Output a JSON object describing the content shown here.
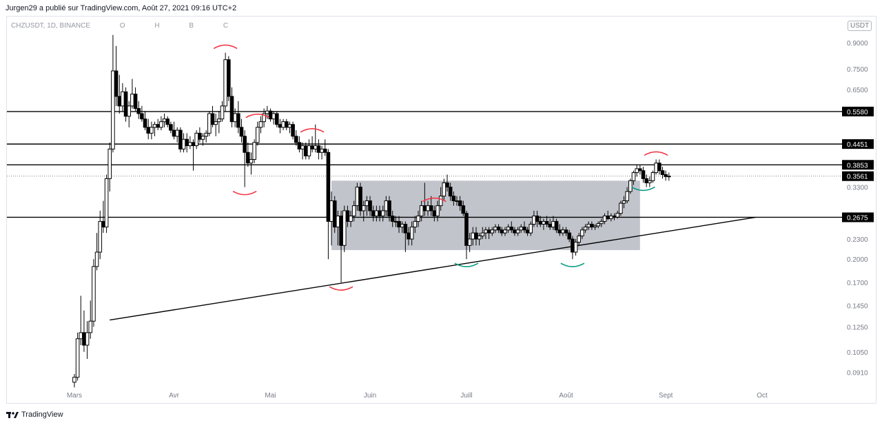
{
  "header": {
    "publish_text": "Jurgen29 a  publié sur TradingView.com, Août 27, 2021 09:16 UTC+2"
  },
  "symbol": {
    "ticker": "CHZUSDT, 1D, BINANCE",
    "o_label": "O",
    "h_label": "H",
    "b_label": "B",
    "c_label": "C"
  },
  "currency_badge": "USDT",
  "footer": {
    "brand": "TradingView"
  },
  "colors": {
    "candle": "#000000",
    "level_line": "#000000",
    "range_box": "#b2b5be",
    "resistance_mark": "#f23645",
    "support_mark": "#089981",
    "current_price_bg": "#000000"
  },
  "chart_data": {
    "type": "candlestick",
    "pair": "CHZUSDT",
    "timeframe": "1D",
    "exchange": "BINANCE",
    "yscale": "log",
    "ylim": [
      0.081,
      1.08
    ],
    "x_tick_labels": [
      "Mars",
      "Avr",
      "Mai",
      "Juin",
      "Juill",
      "Août",
      "Sept",
      "Oct"
    ],
    "y_tick_labels": [
      "0.9000",
      "0.7500",
      "0.6500",
      "0.3300",
      "0.2300",
      "0.2000",
      "0.1700",
      "0.1450",
      "0.1250",
      "0.1050",
      "0.0910"
    ],
    "y_tick_values": [
      0.9,
      0.75,
      0.65,
      0.33,
      0.23,
      0.2,
      0.17,
      0.145,
      0.125,
      0.105,
      0.091
    ],
    "horizontal_levels": [
      {
        "label": "0.5580",
        "value": 0.558
      },
      {
        "label": "0.4451",
        "value": 0.4451
      },
      {
        "label": "0.3853",
        "value": 0.3853
      },
      {
        "label": "0.2675",
        "value": 0.2675
      }
    ],
    "current_price": {
      "label": "0.3561",
      "value": 0.3561
    },
    "range_box": {
      "start": "2021-05-20",
      "end": "2021-08-24",
      "top": 0.345,
      "bottom": 0.213
    },
    "trendline": {
      "start_date": "2021-03-12",
      "start_value": 0.131,
      "end_date": "2021-09-29",
      "end_value": 0.2675
    },
    "candles": [
      [
        "2021-03-01",
        0.085,
        0.09,
        0.082,
        0.088
      ],
      [
        "2021-03-02",
        0.088,
        0.12,
        0.086,
        0.115
      ],
      [
        "2021-03-03",
        0.115,
        0.155,
        0.11,
        0.12
      ],
      [
        "2021-03-04",
        0.12,
        0.14,
        0.105,
        0.11
      ],
      [
        "2021-03-05",
        0.11,
        0.13,
        0.1,
        0.12
      ],
      [
        "2021-03-06",
        0.12,
        0.15,
        0.115,
        0.13
      ],
      [
        "2021-03-07",
        0.13,
        0.2,
        0.125,
        0.19
      ],
      [
        "2021-03-08",
        0.19,
        0.24,
        0.185,
        0.21
      ],
      [
        "2021-03-09",
        0.21,
        0.28,
        0.2,
        0.26
      ],
      [
        "2021-03-10",
        0.26,
        0.3,
        0.24,
        0.25
      ],
      [
        "2021-03-11",
        0.25,
        0.36,
        0.24,
        0.35
      ],
      [
        "2021-03-12",
        0.35,
        0.45,
        0.32,
        0.43
      ],
      [
        "2021-03-13",
        0.43,
        0.95,
        0.42,
        0.74
      ],
      [
        "2021-03-14",
        0.74,
        0.88,
        0.58,
        0.62
      ],
      [
        "2021-03-15",
        0.62,
        0.72,
        0.55,
        0.58
      ],
      [
        "2021-03-16",
        0.58,
        0.68,
        0.56,
        0.64
      ],
      [
        "2021-03-17",
        0.64,
        0.66,
        0.52,
        0.54
      ],
      [
        "2021-03-18",
        0.54,
        0.6,
        0.5,
        0.58
      ],
      [
        "2021-03-19",
        0.58,
        0.7,
        0.57,
        0.63
      ],
      [
        "2021-03-20",
        0.63,
        0.66,
        0.56,
        0.57
      ],
      [
        "2021-03-21",
        0.57,
        0.6,
        0.53,
        0.55
      ],
      [
        "2021-03-22",
        0.55,
        0.58,
        0.52,
        0.53
      ],
      [
        "2021-03-23",
        0.53,
        0.56,
        0.49,
        0.5
      ],
      [
        "2021-03-24",
        0.5,
        0.53,
        0.46,
        0.48
      ],
      [
        "2021-03-25",
        0.48,
        0.52,
        0.46,
        0.5
      ],
      [
        "2021-03-26",
        0.5,
        0.52,
        0.47,
        0.51
      ],
      [
        "2021-03-27",
        0.51,
        0.53,
        0.49,
        0.5
      ],
      [
        "2021-03-28",
        0.5,
        0.54,
        0.49,
        0.52
      ],
      [
        "2021-03-29",
        0.52,
        0.55,
        0.5,
        0.53
      ],
      [
        "2021-03-30",
        0.53,
        0.54,
        0.5,
        0.51
      ],
      [
        "2021-03-31",
        0.51,
        0.52,
        0.48,
        0.49
      ],
      [
        "2021-04-01",
        0.49,
        0.52,
        0.46,
        0.47
      ],
      [
        "2021-04-02",
        0.47,
        0.5,
        0.45,
        0.49
      ],
      [
        "2021-04-03",
        0.49,
        0.5,
        0.42,
        0.43
      ],
      [
        "2021-04-04",
        0.43,
        0.48,
        0.42,
        0.46
      ],
      [
        "2021-04-05",
        0.46,
        0.48,
        0.42,
        0.44
      ],
      [
        "2021-04-06",
        0.44,
        0.47,
        0.43,
        0.45
      ],
      [
        "2021-04-07",
        0.45,
        0.46,
        0.37,
        0.44
      ],
      [
        "2021-04-08",
        0.44,
        0.49,
        0.43,
        0.48
      ],
      [
        "2021-04-09",
        0.48,
        0.5,
        0.45,
        0.46
      ],
      [
        "2021-04-10",
        0.46,
        0.48,
        0.44,
        0.47
      ],
      [
        "2021-04-11",
        0.47,
        0.49,
        0.45,
        0.48
      ],
      [
        "2021-04-12",
        0.48,
        0.56,
        0.47,
        0.55
      ],
      [
        "2021-04-13",
        0.55,
        0.58,
        0.5,
        0.51
      ],
      [
        "2021-04-14",
        0.51,
        0.55,
        0.47,
        0.52
      ],
      [
        "2021-04-15",
        0.52,
        0.56,
        0.48,
        0.53
      ],
      [
        "2021-04-16",
        0.53,
        0.6,
        0.52,
        0.58
      ],
      [
        "2021-04-17",
        0.58,
        0.84,
        0.56,
        0.8
      ],
      [
        "2021-04-18",
        0.8,
        0.82,
        0.6,
        0.62
      ],
      [
        "2021-04-19",
        0.62,
        0.66,
        0.5,
        0.52
      ],
      [
        "2021-04-20",
        0.52,
        0.57,
        0.5,
        0.55
      ],
      [
        "2021-04-21",
        0.55,
        0.6,
        0.48,
        0.5
      ],
      [
        "2021-04-22",
        0.5,
        0.53,
        0.45,
        0.47
      ],
      [
        "2021-04-23",
        0.47,
        0.49,
        0.33,
        0.42
      ],
      [
        "2021-04-24",
        0.42,
        0.45,
        0.38,
        0.39
      ],
      [
        "2021-04-25",
        0.39,
        0.42,
        0.36,
        0.4
      ],
      [
        "2021-04-26",
        0.4,
        0.46,
        0.39,
        0.45
      ],
      [
        "2021-04-27",
        0.45,
        0.52,
        0.44,
        0.5
      ],
      [
        "2021-04-28",
        0.5,
        0.54,
        0.48,
        0.52
      ],
      [
        "2021-04-29",
        0.52,
        0.57,
        0.5,
        0.55
      ],
      [
        "2021-04-30",
        0.55,
        0.58,
        0.53,
        0.56
      ],
      [
        "2021-05-01",
        0.56,
        0.57,
        0.52,
        0.53
      ],
      [
        "2021-05-02",
        0.53,
        0.56,
        0.51,
        0.55
      ],
      [
        "2021-05-03",
        0.55,
        0.56,
        0.5,
        0.51
      ],
      [
        "2021-05-04",
        0.51,
        0.53,
        0.48,
        0.5
      ],
      [
        "2021-05-05",
        0.5,
        0.53,
        0.49,
        0.52
      ],
      [
        "2021-05-06",
        0.52,
        0.53,
        0.49,
        0.5
      ],
      [
        "2021-05-07",
        0.5,
        0.52,
        0.48,
        0.51
      ],
      [
        "2021-05-08",
        0.51,
        0.52,
        0.46,
        0.47
      ],
      [
        "2021-05-09",
        0.47,
        0.49,
        0.44,
        0.45
      ],
      [
        "2021-05-10",
        0.45,
        0.47,
        0.42,
        0.43
      ],
      [
        "2021-05-11",
        0.43,
        0.45,
        0.4,
        0.44
      ],
      [
        "2021-05-12",
        0.44,
        0.45,
        0.4,
        0.41
      ],
      [
        "2021-05-13",
        0.41,
        0.46,
        0.4,
        0.44
      ],
      [
        "2021-05-14",
        0.44,
        0.47,
        0.42,
        0.43
      ],
      [
        "2021-05-15",
        0.43,
        0.51,
        0.42,
        0.44
      ],
      [
        "2021-05-16",
        0.44,
        0.46,
        0.4,
        0.42
      ],
      [
        "2021-05-17",
        0.42,
        0.44,
        0.4,
        0.43
      ],
      [
        "2021-05-18",
        0.43,
        0.46,
        0.41,
        0.42
      ],
      [
        "2021-05-19",
        0.42,
        0.43,
        0.2,
        0.26
      ],
      [
        "2021-05-20",
        0.26,
        0.32,
        0.22,
        0.3
      ],
      [
        "2021-05-21",
        0.3,
        0.31,
        0.24,
        0.25
      ],
      [
        "2021-05-22",
        0.25,
        0.28,
        0.22,
        0.27
      ],
      [
        "2021-05-23",
        0.27,
        0.28,
        0.17,
        0.22
      ],
      [
        "2021-05-24",
        0.22,
        0.29,
        0.21,
        0.28
      ],
      [
        "2021-05-25",
        0.28,
        0.29,
        0.25,
        0.26
      ],
      [
        "2021-05-26",
        0.26,
        0.28,
        0.25,
        0.27
      ],
      [
        "2021-05-27",
        0.27,
        0.3,
        0.26,
        0.29
      ],
      [
        "2021-05-28",
        0.29,
        0.34,
        0.28,
        0.33
      ],
      [
        "2021-05-29",
        0.33,
        0.34,
        0.27,
        0.28
      ],
      [
        "2021-05-30",
        0.28,
        0.3,
        0.26,
        0.29
      ],
      [
        "2021-05-31",
        0.29,
        0.31,
        0.27,
        0.3
      ],
      [
        "2021-06-01",
        0.3,
        0.31,
        0.27,
        0.28
      ],
      [
        "2021-06-02",
        0.28,
        0.29,
        0.26,
        0.27
      ],
      [
        "2021-06-03",
        0.27,
        0.29,
        0.26,
        0.28
      ],
      [
        "2021-06-04",
        0.28,
        0.29,
        0.26,
        0.27
      ],
      [
        "2021-06-05",
        0.27,
        0.29,
        0.26,
        0.28
      ],
      [
        "2021-06-06",
        0.28,
        0.31,
        0.27,
        0.3
      ],
      [
        "2021-06-07",
        0.3,
        0.31,
        0.26,
        0.27
      ],
      [
        "2021-06-08",
        0.27,
        0.28,
        0.25,
        0.26
      ],
      [
        "2021-06-09",
        0.26,
        0.27,
        0.25,
        0.26
      ],
      [
        "2021-06-10",
        0.26,
        0.27,
        0.24,
        0.25
      ],
      [
        "2021-06-11",
        0.25,
        0.26,
        0.24,
        0.255
      ],
      [
        "2021-06-12",
        0.255,
        0.26,
        0.21,
        0.24
      ],
      [
        "2021-06-13",
        0.24,
        0.25,
        0.22,
        0.23
      ],
      [
        "2021-06-14",
        0.23,
        0.26,
        0.22,
        0.25
      ],
      [
        "2021-06-15",
        0.25,
        0.27,
        0.24,
        0.26
      ],
      [
        "2021-06-16",
        0.26,
        0.28,
        0.25,
        0.27
      ],
      [
        "2021-06-17",
        0.27,
        0.3,
        0.26,
        0.29
      ],
      [
        "2021-06-18",
        0.29,
        0.34,
        0.27,
        0.28
      ],
      [
        "2021-06-19",
        0.28,
        0.3,
        0.27,
        0.29
      ],
      [
        "2021-06-20",
        0.29,
        0.31,
        0.27,
        0.28
      ],
      [
        "2021-06-21",
        0.28,
        0.29,
        0.26,
        0.27
      ],
      [
        "2021-06-22",
        0.27,
        0.3,
        0.26,
        0.29
      ],
      [
        "2021-06-23",
        0.29,
        0.33,
        0.28,
        0.31
      ],
      [
        "2021-06-24",
        0.31,
        0.35,
        0.3,
        0.34
      ],
      [
        "2021-06-25",
        0.34,
        0.36,
        0.32,
        0.33
      ],
      [
        "2021-06-26",
        0.33,
        0.34,
        0.3,
        0.31
      ],
      [
        "2021-06-27",
        0.31,
        0.32,
        0.29,
        0.3
      ],
      [
        "2021-06-28",
        0.3,
        0.31,
        0.29,
        0.3
      ],
      [
        "2021-06-29",
        0.3,
        0.31,
        0.28,
        0.29
      ],
      [
        "2021-06-30",
        0.29,
        0.3,
        0.27,
        0.275
      ],
      [
        "2021-07-01",
        0.275,
        0.28,
        0.2,
        0.22
      ],
      [
        "2021-07-02",
        0.22,
        0.24,
        0.21,
        0.23
      ],
      [
        "2021-07-03",
        0.23,
        0.25,
        0.22,
        0.24
      ],
      [
        "2021-07-04",
        0.24,
        0.25,
        0.22,
        0.23
      ],
      [
        "2021-07-05",
        0.23,
        0.24,
        0.22,
        0.235
      ],
      [
        "2021-07-06",
        0.235,
        0.25,
        0.23,
        0.24
      ],
      [
        "2021-07-07",
        0.24,
        0.25,
        0.23,
        0.245
      ],
      [
        "2021-07-08",
        0.245,
        0.25,
        0.23,
        0.24
      ],
      [
        "2021-07-09",
        0.24,
        0.25,
        0.235,
        0.245
      ],
      [
        "2021-07-10",
        0.245,
        0.255,
        0.24,
        0.25
      ],
      [
        "2021-07-11",
        0.25,
        0.255,
        0.24,
        0.245
      ],
      [
        "2021-07-12",
        0.245,
        0.25,
        0.235,
        0.24
      ],
      [
        "2021-07-13",
        0.24,
        0.25,
        0.235,
        0.245
      ],
      [
        "2021-07-14",
        0.245,
        0.255,
        0.24,
        0.25
      ],
      [
        "2021-07-15",
        0.25,
        0.26,
        0.24,
        0.245
      ],
      [
        "2021-07-16",
        0.245,
        0.25,
        0.235,
        0.24
      ],
      [
        "2021-07-17",
        0.24,
        0.25,
        0.235,
        0.245
      ],
      [
        "2021-07-18",
        0.245,
        0.255,
        0.24,
        0.25
      ],
      [
        "2021-07-19",
        0.25,
        0.26,
        0.24,
        0.245
      ],
      [
        "2021-07-20",
        0.245,
        0.25,
        0.235,
        0.24
      ],
      [
        "2021-07-21",
        0.24,
        0.26,
        0.235,
        0.255
      ],
      [
        "2021-07-22",
        0.255,
        0.28,
        0.25,
        0.27
      ],
      [
        "2021-07-23",
        0.27,
        0.28,
        0.25,
        0.26
      ],
      [
        "2021-07-24",
        0.26,
        0.27,
        0.25,
        0.255
      ],
      [
        "2021-07-25",
        0.255,
        0.265,
        0.245,
        0.26
      ],
      [
        "2021-07-26",
        0.26,
        0.27,
        0.25,
        0.255
      ],
      [
        "2021-07-27",
        0.255,
        0.265,
        0.245,
        0.25
      ],
      [
        "2021-07-28",
        0.25,
        0.27,
        0.245,
        0.26
      ],
      [
        "2021-07-29",
        0.26,
        0.265,
        0.24,
        0.245
      ],
      [
        "2021-07-30",
        0.245,
        0.255,
        0.235,
        0.24
      ],
      [
        "2021-07-31",
        0.24,
        0.25,
        0.235,
        0.245
      ],
      [
        "2021-08-01",
        0.245,
        0.25,
        0.235,
        0.24
      ],
      [
        "2021-08-02",
        0.24,
        0.245,
        0.225,
        0.23
      ],
      [
        "2021-08-03",
        0.23,
        0.235,
        0.2,
        0.21
      ],
      [
        "2021-08-04",
        0.21,
        0.23,
        0.205,
        0.225
      ],
      [
        "2021-08-05",
        0.225,
        0.24,
        0.22,
        0.235
      ],
      [
        "2021-08-06",
        0.235,
        0.25,
        0.23,
        0.245
      ],
      [
        "2021-08-07",
        0.245,
        0.255,
        0.24,
        0.25
      ],
      [
        "2021-08-08",
        0.25,
        0.26,
        0.245,
        0.255
      ],
      [
        "2021-08-09",
        0.255,
        0.26,
        0.245,
        0.25
      ],
      [
        "2021-08-10",
        0.25,
        0.255,
        0.245,
        0.252
      ],
      [
        "2021-08-11",
        0.252,
        0.26,
        0.248,
        0.256
      ],
      [
        "2021-08-12",
        0.256,
        0.265,
        0.25,
        0.26
      ],
      [
        "2021-08-13",
        0.26,
        0.275,
        0.255,
        0.27
      ],
      [
        "2021-08-14",
        0.27,
        0.28,
        0.262,
        0.265
      ],
      [
        "2021-08-15",
        0.265,
        0.275,
        0.26,
        0.27
      ],
      [
        "2021-08-16",
        0.27,
        0.275,
        0.262,
        0.268
      ],
      [
        "2021-08-17",
        0.268,
        0.28,
        0.265,
        0.275
      ],
      [
        "2021-08-18",
        0.275,
        0.3,
        0.27,
        0.295
      ],
      [
        "2021-08-19",
        0.295,
        0.31,
        0.285,
        0.3
      ],
      [
        "2021-08-20",
        0.3,
        0.33,
        0.295,
        0.32
      ],
      [
        "2021-08-21",
        0.32,
        0.35,
        0.315,
        0.345
      ],
      [
        "2021-08-22",
        0.345,
        0.37,
        0.335,
        0.365
      ],
      [
        "2021-08-23",
        0.365,
        0.385,
        0.355,
        0.375
      ],
      [
        "2021-08-24",
        0.375,
        0.385,
        0.36,
        0.37
      ],
      [
        "2021-08-25",
        0.37,
        0.38,
        0.34,
        0.35
      ],
      [
        "2021-08-26",
        0.35,
        0.36,
        0.33,
        0.34
      ],
      [
        "2021-08-27",
        0.34,
        0.355,
        0.33,
        0.345
      ],
      [
        "2021-08-28",
        0.345,
        0.37,
        0.34,
        0.365
      ],
      [
        "2021-08-29",
        0.365,
        0.4,
        0.36,
        0.39
      ],
      [
        "2021-08-30",
        0.39,
        0.4,
        0.36,
        0.37
      ],
      [
        "2021-08-31",
        0.37,
        0.38,
        0.35,
        0.36
      ],
      [
        "2021-09-01",
        0.36,
        0.37,
        0.345,
        0.355
      ],
      [
        "2021-09-02",
        0.355,
        0.365,
        0.345,
        0.3561
      ]
    ],
    "resistance_marks": [
      "2021-04-17",
      "2021-04-27",
      "2021-05-14",
      "2021-06-21",
      "2021-08-29"
    ],
    "resistance_low_marks": [
      "2021-04-23",
      "2021-05-23"
    ],
    "support_marks": [
      "2021-07-01",
      "2021-08-03",
      "2021-08-25"
    ]
  }
}
